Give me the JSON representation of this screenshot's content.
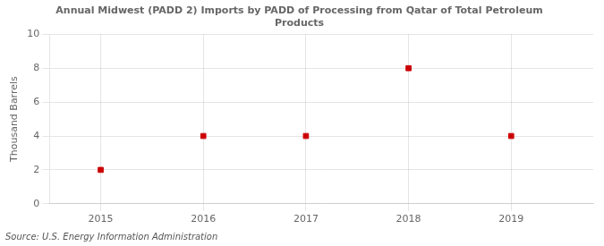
{
  "chart_data": {
    "type": "scatter",
    "title": "Annual Midwest (PADD 2) Imports by PADD of Processing from Qatar of Total Petroleum\nProducts",
    "ylabel": "Thousand Barrels",
    "annotations": [
      "Source: U.S. Energy Information Administration"
    ],
    "x": [
      2015,
      2016,
      2017,
      2018,
      2019
    ],
    "values": [
      2,
      4,
      4,
      8,
      4
    ],
    "color": "#cc0000",
    "marker": "square",
    "xlim": [
      2014.5,
      2019.8
    ],
    "xticks": [
      2015,
      2016,
      2017,
      2018,
      2019
    ],
    "ylim": [
      0,
      10
    ],
    "yticks": [
      0,
      2,
      4,
      6,
      8,
      10
    ],
    "grid": true
  }
}
